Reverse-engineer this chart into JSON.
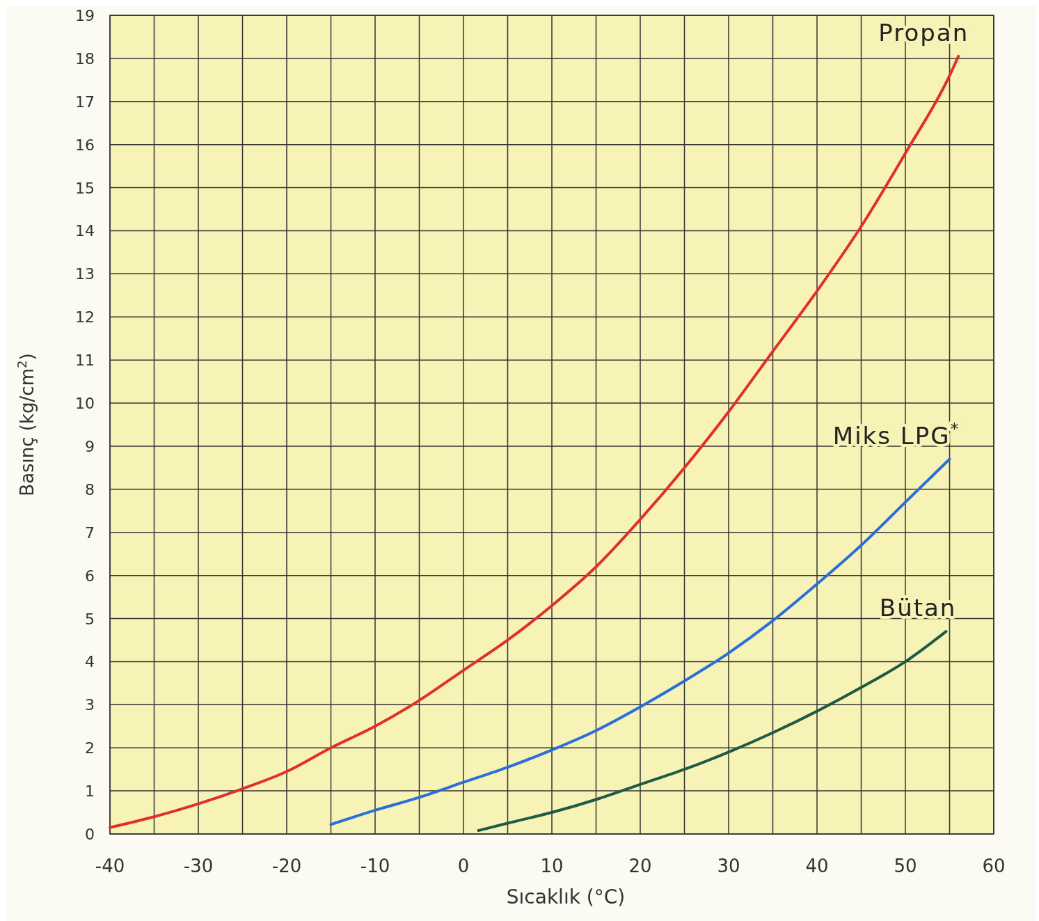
{
  "chart_data": {
    "type": "line",
    "xlabel": "Sıcaklık (°C)",
    "ylabel": "Basınç (kg/cm$^{2}$)",
    "xlim": [
      -40,
      60
    ],
    "ylim": [
      0,
      19
    ],
    "xticks": [
      -40,
      {
        "value": -35,
        "label": null
      },
      -30,
      {
        "value": -25,
        "label": null
      },
      -20,
      {
        "value": -15,
        "label": null
      },
      -10,
      {
        "value": -5,
        "label": null
      },
      0,
      {
        "value": 5,
        "label": null
      },
      10,
      {
        "value": 15,
        "label": null
      },
      20,
      {
        "value": 25,
        "label": null
      },
      30,
      {
        "value": 35,
        "label": null
      },
      40,
      {
        "value": 45,
        "label": null
      },
      50,
      {
        "value": 55,
        "label": null
      },
      60
    ],
    "yticks": [
      0,
      1,
      2,
      3,
      4,
      5,
      6,
      7,
      8,
      9,
      10,
      11,
      12,
      13,
      14,
      15,
      16,
      17,
      18,
      19
    ],
    "grid": true,
    "marker": "none",
    "line_style": "solid",
    "series": [
      {
        "name": "Propan",
        "color": "#e0302a",
        "x": [
          -40,
          -35,
          -30,
          -25,
          -20,
          -15,
          -10,
          -5,
          0,
          5,
          10,
          15,
          20,
          25,
          30,
          35,
          40,
          45,
          50,
          55,
          56
        ],
        "values": [
          0.15,
          0.4,
          0.7,
          1.05,
          1.45,
          2.0,
          2.5,
          3.1,
          3.8,
          4.5,
          5.3,
          6.2,
          7.3,
          8.5,
          9.8,
          11.2,
          12.6,
          14.1,
          15.8,
          17.6,
          18.05
        ]
      },
      {
        "name": "Miks LPG$^{*}$",
        "color": "#2a6fd8",
        "x": [
          -15,
          -10,
          -5,
          0,
          5,
          10,
          15,
          20,
          25,
          30,
          35,
          40,
          45,
          50,
          55
        ],
        "values": [
          0.22,
          0.55,
          0.85,
          1.2,
          1.55,
          1.95,
          2.4,
          2.95,
          3.55,
          4.2,
          4.95,
          5.8,
          6.7,
          7.7,
          8.7
        ]
      },
      {
        "name": "Bütan",
        "color": "#1e5a45",
        "x": [
          1.7,
          5,
          10,
          15,
          20,
          25,
          30,
          35,
          40,
          45,
          50,
          54.6
        ],
        "values": [
          0.08,
          0.25,
          0.5,
          0.8,
          1.15,
          1.5,
          1.9,
          2.35,
          2.85,
          3.4,
          4.0,
          4.7
        ]
      }
    ]
  }
}
